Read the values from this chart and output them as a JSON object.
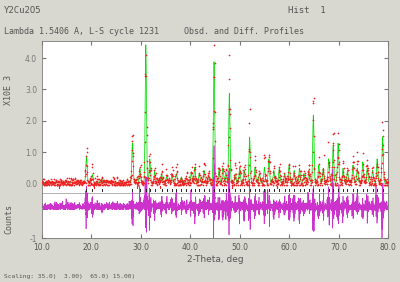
{
  "title_left": "Y2Cu2O5",
  "title_right": "Hist  1",
  "subtitle_left": "Lambda 1.5406 A, L-S cycle 1231",
  "subtitle_right": "Obsd. and Diff. Profiles",
  "xlabel": "2-Theta, deg",
  "ylabel_top": "X10E 3",
  "ylabel_bottom": "Counts",
  "xmin": 10.0,
  "xmax": 80.0,
  "scaling_note": "Scaling: 35.0)  3.00)  65.0) 15.00)",
  "bg_color": "#d8d8d0",
  "plot_bg_color": "#ffffff",
  "observed_color": "#ee2222",
  "calculated_color": "#00dd00",
  "difference_color": "#cc33cc",
  "tick1_color": "#ee2222",
  "tick2_color": "#222222",
  "text_color": "#555555",
  "axes_color": "#777777"
}
